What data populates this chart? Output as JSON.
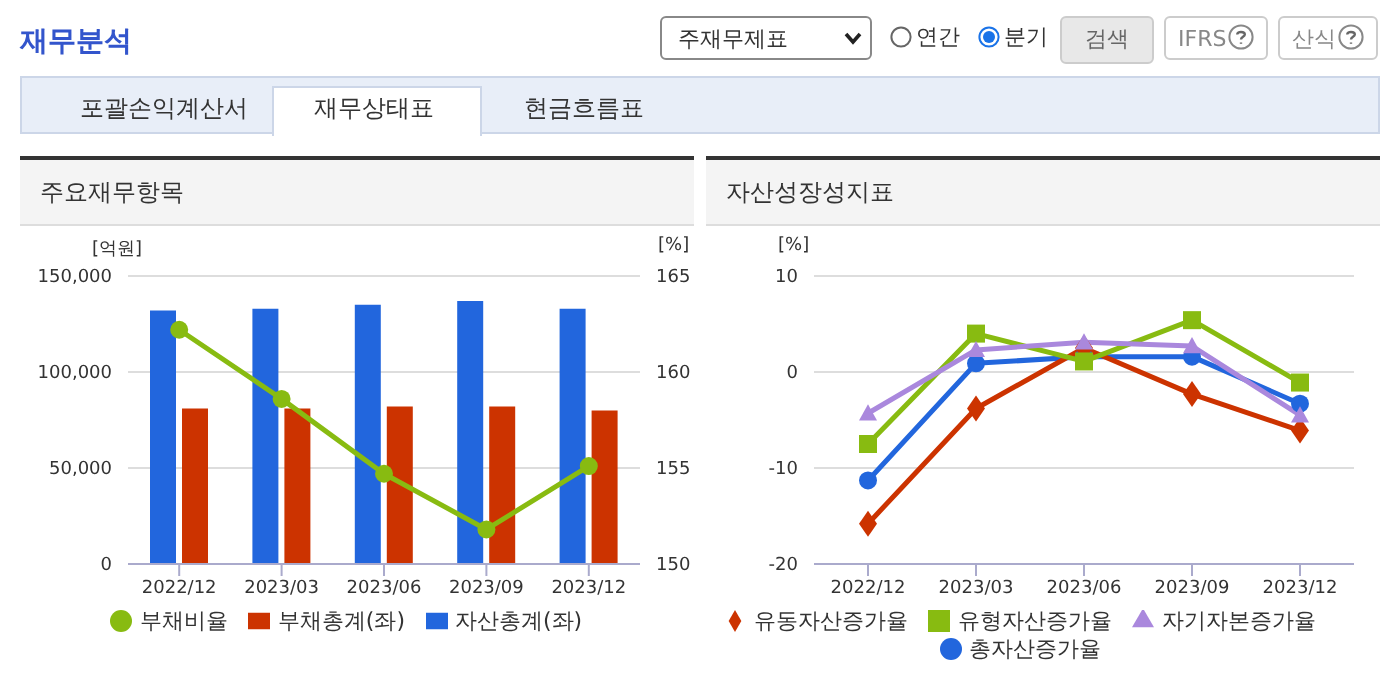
{
  "chart_data": [
    {
      "type": "bar",
      "title": "주요재무항목",
      "ylabel": "[억원]",
      "y2label": "[%]",
      "annotations": [
        "재무분석",
        "주재무제표",
        "연간",
        "분기",
        "검색",
        "IFRS",
        "산식",
        "포괄손익계산서",
        "재무상태표",
        "현금흐름표"
      ],
      "categories": [
        "2022/12",
        "2023/03",
        "2023/06",
        "2023/09",
        "2023/12"
      ],
      "series": [
        {
          "name": "자산총계(좌)",
          "color": "#2266dd",
          "values": [
            132000,
            133000,
            135000,
            137000,
            133000
          ]
        },
        {
          "name": "부채총계(좌)",
          "color": "#cc3300",
          "values": [
            81000,
            81000,
            82000,
            82000,
            80000
          ]
        },
        {
          "name": "부채비율",
          "type": "line",
          "axis": "y2",
          "marker": "circle",
          "color": "#88bb11",
          "values": [
            162.2,
            158.6,
            154.7,
            151.8,
            155.1
          ]
        }
      ],
      "ylim": [
        0,
        150000
      ],
      "yticks": [
        {
          "value": 0,
          "label": "0"
        },
        {
          "value": 50000,
          "label": "50,000"
        },
        {
          "value": 100000,
          "label": "100,000"
        },
        {
          "value": 150000,
          "label": "150,000"
        }
      ],
      "y2lim": [
        150,
        165
      ],
      "y2ticks": [
        150,
        155,
        160,
        165
      ],
      "grid": "y",
      "legend": "bottom"
    },
    {
      "type": "line",
      "title": "자산성장성지표",
      "ylabel": "[%]",
      "categories": [
        "2022/12",
        "2023/03",
        "2023/06",
        "2023/09",
        "2023/12"
      ],
      "series": [
        {
          "name": "총자산증가율",
          "color": "#2266dd",
          "marker": "circle",
          "values": [
            -11.3,
            0.9,
            1.6,
            1.6,
            -3.3
          ]
        },
        {
          "name": "유동자산증가율",
          "color": "#cc3300",
          "marker": "diamond",
          "values": [
            -15.8,
            -3.8,
            2.5,
            -2.3,
            -6.1
          ]
        },
        {
          "name": "유형자산증가율",
          "color": "#88bb11",
          "marker": "square",
          "values": [
            -7.5,
            4.0,
            1.1,
            5.4,
            -1.1
          ]
        },
        {
          "name": "자기자본증가율",
          "color": "#aa88dd",
          "marker": "triangle",
          "values": [
            -4.3,
            2.3,
            3.1,
            2.7,
            -4.5
          ]
        }
      ],
      "ylim": [
        -20,
        10
      ],
      "yticks": [
        -20,
        -10,
        0,
        10
      ],
      "grid": "y",
      "legend": "bottom"
    }
  ]
}
